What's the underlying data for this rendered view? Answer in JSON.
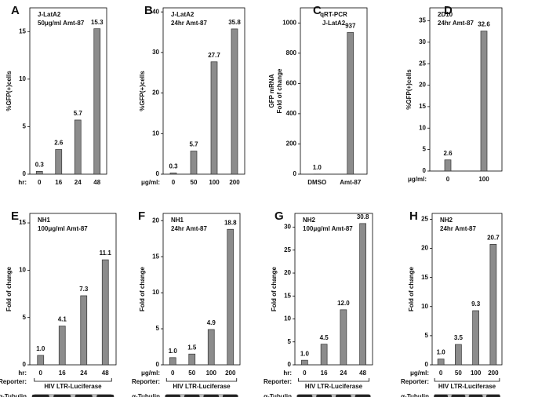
{
  "chart_data": [
    {
      "type": "bar",
      "panel": "A",
      "title": [
        "J-LatA2",
        "50μg/ml Amt-87"
      ],
      "ylabel": [
        "%GFP(+)cells"
      ],
      "x_prefix": "hr:",
      "categories": [
        "0",
        "16",
        "24",
        "48"
      ],
      "values": [
        0.3,
        2.6,
        5.7,
        15.3
      ],
      "value_labels": [
        "0.3",
        "2.6",
        "5.7",
        "15.3"
      ],
      "ylim": [
        0,
        17.5
      ],
      "yticks": [
        0,
        5,
        10,
        15
      ],
      "color": "#8c8c8c"
    },
    {
      "type": "bar",
      "panel": "B",
      "title": [
        "J-LatA2",
        "24hr Amt-87"
      ],
      "ylabel": [
        "%GFP(+)cells"
      ],
      "x_prefix": "μg/ml:",
      "categories": [
        "0",
        "50",
        "100",
        "200"
      ],
      "values": [
        0.3,
        5.7,
        27.7,
        35.8
      ],
      "value_labels": [
        "0.3",
        "5.7",
        "27.7",
        "35.8"
      ],
      "ylim": [
        0,
        41
      ],
      "yticks": [
        0,
        10,
        20,
        30,
        40
      ],
      "color": "#8c8c8c"
    },
    {
      "type": "bar",
      "panel": "C",
      "title": [
        "qRT-PCR",
        "J-LatA2"
      ],
      "ylabel": [
        "GFP mRNA",
        "Fold of change"
      ],
      "categories": [
        "DMSO",
        "Amt-87"
      ],
      "values": [
        1.0,
        937
      ],
      "value_labels": [
        "1.0",
        "937"
      ],
      "ylim": [
        0,
        1100
      ],
      "yticks": [
        0,
        200,
        400,
        600,
        800,
        1000
      ],
      "color": "#8c8c8c"
    },
    {
      "type": "bar",
      "panel": "D",
      "title": [
        "2D10",
        "24hr Amt-87"
      ],
      "ylabel": [
        "%GFP(+)cells"
      ],
      "x_prefix": "μg/ml:",
      "categories": [
        "0",
        "100"
      ],
      "values": [
        2.6,
        32.6
      ],
      "value_labels": [
        "2.6",
        "32.6"
      ],
      "ylim": [
        0,
        38
      ],
      "yticks": [
        0,
        5,
        10,
        15,
        20,
        25,
        30,
        35
      ],
      "color": "#8c8c8c"
    },
    {
      "type": "bar",
      "panel": "E",
      "title": [
        "NH1",
        "100μg/ml  Amt-87"
      ],
      "ylabel": [
        "Fold of change"
      ],
      "x_prefix": "hr:",
      "categories": [
        "0",
        "16",
        "24",
        "48"
      ],
      "values": [
        1.0,
        4.1,
        7.3,
        11.1
      ],
      "value_labels": [
        "1.0",
        "4.1",
        "7.3",
        "11.1"
      ],
      "ylim": [
        0,
        16
      ],
      "yticks": [
        0,
        5,
        10,
        15
      ],
      "color": "#8c8c8c",
      "reporter_label": "Reporter:",
      "reporter": "HIV LTR-Luciferase",
      "loading": "α-Tubulin"
    },
    {
      "type": "bar",
      "panel": "F",
      "title": [
        "NH1",
        "24hr Amt-87"
      ],
      "ylabel": [
        "Fold of change"
      ],
      "x_prefix": "μg/ml:",
      "categories": [
        "0",
        "50",
        "100",
        "200"
      ],
      "values": [
        1.0,
        1.5,
        4.9,
        18.8
      ],
      "value_labels": [
        "1.0",
        "1.5",
        "4.9",
        "18.8"
      ],
      "ylim": [
        0,
        21
      ],
      "yticks": [
        0,
        5,
        10,
        15,
        20
      ],
      "color": "#8c8c8c",
      "reporter_label": "Reporter:",
      "reporter": "HIV LTR-Luciferase",
      "loading": "α-Tubulin"
    },
    {
      "type": "bar",
      "panel": "G",
      "title": [
        "NH2",
        "100μg/ml  Amt-87"
      ],
      "ylabel": [
        "Fold of change"
      ],
      "x_prefix": "hr:",
      "categories": [
        "0",
        "16",
        "24",
        "48"
      ],
      "values": [
        1.0,
        4.5,
        12.0,
        30.8
      ],
      "value_labels": [
        "1.0",
        "4.5",
        "12.0",
        "30.8"
      ],
      "ylim": [
        0,
        33
      ],
      "yticks": [
        0,
        5,
        10,
        15,
        20,
        25,
        30
      ],
      "color": "#8c8c8c",
      "reporter_label": "Reporter:",
      "reporter": "HIV LTR-Luciferase",
      "loading": "α-Tubulin"
    },
    {
      "type": "bar",
      "panel": "H",
      "title": [
        "NH2",
        "24hr Amt-87"
      ],
      "ylabel": [
        "Fold of change"
      ],
      "x_prefix": "μg/ml:",
      "categories": [
        "0",
        "50",
        "100",
        "200"
      ],
      "values": [
        1.0,
        3.5,
        9.3,
        20.7
      ],
      "value_labels": [
        "1.0",
        "3.5",
        "9.3",
        "20.7"
      ],
      "ylim": [
        0,
        26
      ],
      "yticks": [
        0,
        5,
        10,
        15,
        20,
        25
      ],
      "color": "#8c8c8c",
      "reporter_label": "Reporter:",
      "reporter": "HIV LTR-Luciferase",
      "loading": "α-Tubulin"
    }
  ]
}
